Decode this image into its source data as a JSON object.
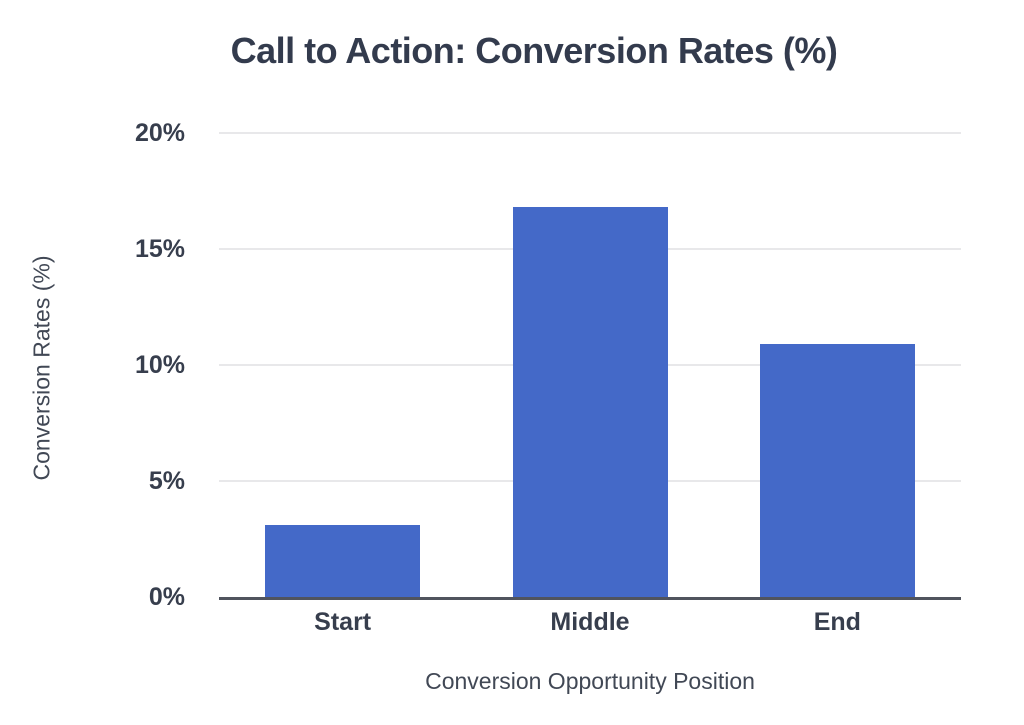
{
  "chart_data": {
    "type": "bar",
    "title": "Call to Action: Conversion Rates (%)",
    "categories": [
      "Start",
      "Middle",
      "End"
    ],
    "values": [
      3.1,
      16.8,
      10.9
    ],
    "xlabel": "Conversion Opportunity Position",
    "ylabel": "Conversion Rates (%)",
    "ylim": [
      0,
      20
    ],
    "yticks": [
      0,
      5,
      10,
      15,
      20
    ],
    "ytick_labels": [
      "0%",
      "5%",
      "10%",
      "15%",
      "20%"
    ],
    "grid": true,
    "legend": false,
    "colors": {
      "bar": "#4469c8",
      "grid": "#e8e8ea",
      "axis_line": "#50545e",
      "text": "#373e4d"
    }
  }
}
